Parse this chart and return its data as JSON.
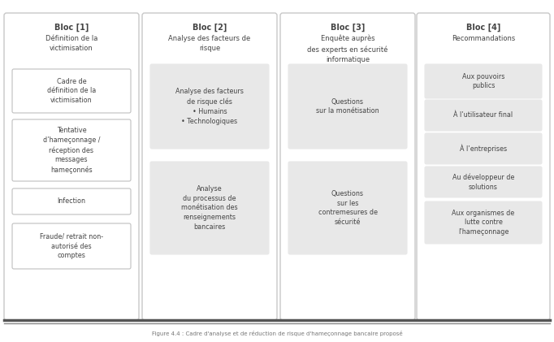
{
  "background_color": "#ffffff",
  "outer_box_color": "#ffffff",
  "outer_border_color": "#c8c8c8",
  "inner_box_col1": "#ffffff",
  "inner_box_col234": "#e8e8e8",
  "inner_border_color": "#c0c0c0",
  "text_color": "#444444",
  "footer_line_color1": "#555555",
  "footer_line_color2": "#888888",
  "footer_text": "Figure 4.4 : Cadre d'analyse et de réduction de risque d'hameçonnage bancaire proposé",
  "columns": [
    {
      "header": "Bloc [1]",
      "subheader": "Définition de la\nvictimisation",
      "boxes": [
        "Cadre de\ndéfinition de la\nvictimisation",
        "Tentative\nd’hameçonnage /\nréception des\nmessages\nhameçonnés",
        "Infection",
        "Fraude/ retrait non-\nautorisé des\ncomptes"
      ]
    },
    {
      "header": "Bloc [2]",
      "subheader": "Analyse des facteurs de\nrisque",
      "boxes": [
        "Analyse des facteurs\nde risque clés\n• Humains\n• Technologiques",
        "Analyse\ndu processus de\nmonétisation des\nrenseignements\nbancaires"
      ]
    },
    {
      "header": "Bloc [3]",
      "subheader": "Enquête auprès\ndes experts en sécurité\ninformatique",
      "boxes": [
        "Questions\nsur la monétisation",
        "Questions\nsur les\ncontremesures de\nsécurité"
      ]
    },
    {
      "header": "Bloc [4]",
      "subheader": "Recommandations",
      "boxes": [
        "Aux pouvoirs\npublics",
        "À l’utilisateur final",
        "À l’entreprises",
        "Au développeur de\nsolutions",
        "Aux organismes de\nlutte contre\nl’hameçonnage"
      ]
    }
  ]
}
